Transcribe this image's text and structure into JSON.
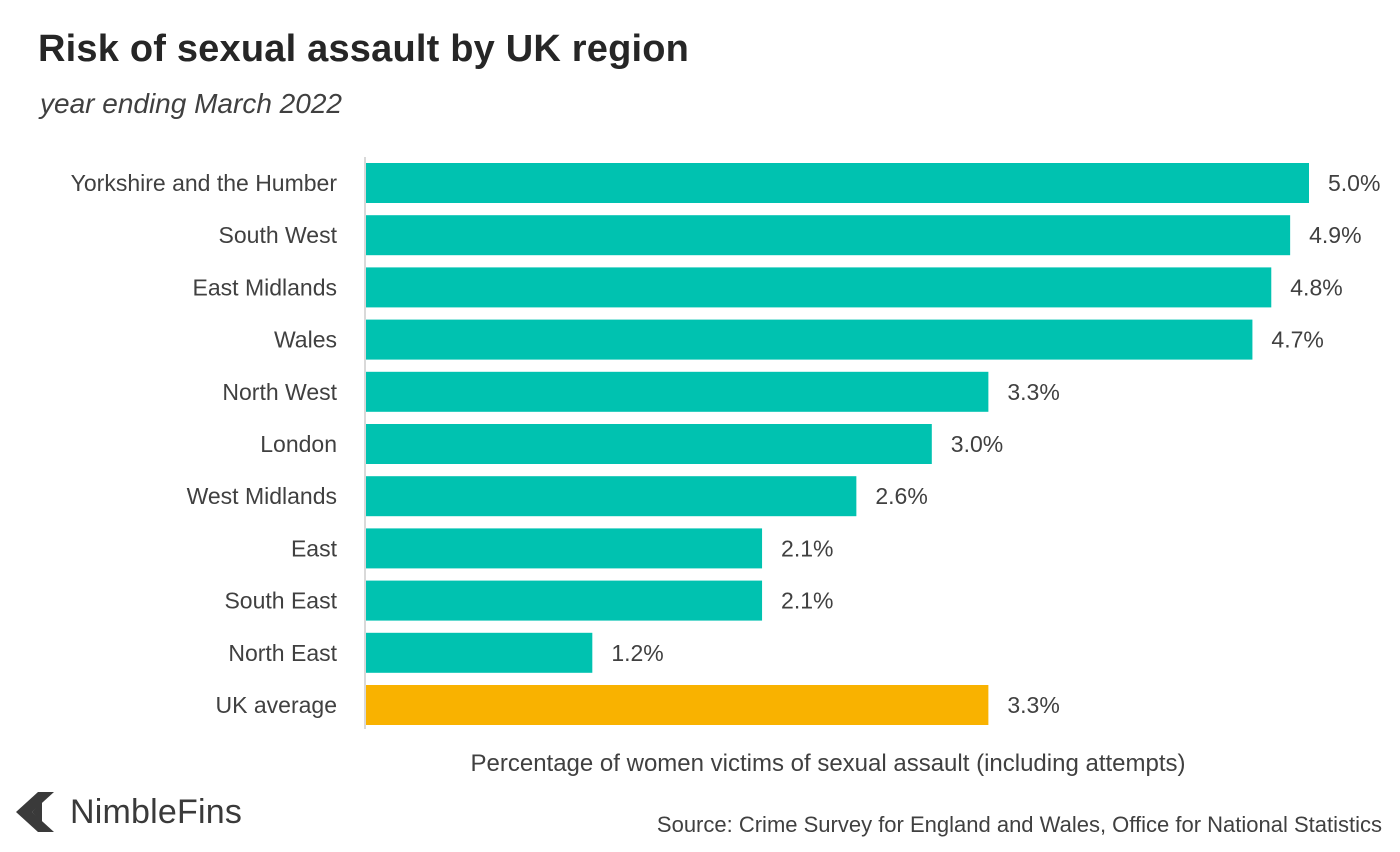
{
  "chart_data": {
    "type": "bar",
    "orientation": "horizontal",
    "title": "Risk of sexual assault by UK region",
    "subtitle": "year ending March 2022",
    "xlabel": "Percentage of women victims of sexual assault (including attempts)",
    "categories": [
      "Yorkshire and the Humber",
      "South West",
      "East Midlands",
      "Wales",
      "North West",
      "London",
      "West Midlands",
      "East",
      "South East",
      "North East",
      "UK average"
    ],
    "values": [
      5.0,
      4.9,
      4.8,
      4.7,
      3.3,
      3.0,
      2.6,
      2.1,
      2.1,
      1.2,
      3.3
    ],
    "value_labels": [
      "5.0%",
      "4.9%",
      "4.8%",
      "4.7%",
      "3.3%",
      "3.0%",
      "2.6%",
      "2.1%",
      "2.1%",
      "1.2%",
      "3.3%"
    ],
    "highlight_category": "UK average",
    "xlim": [
      0,
      5.0
    ],
    "grid": false,
    "colors": {
      "bar": "#00C2B0",
      "highlight": "#F9B200",
      "axis": "#D9D9D9"
    }
  },
  "branding": {
    "logo_text": "NimbleFins",
    "logo_icon": "chevron-left-icon"
  },
  "source": "Source: Crime Survey for England and Wales, Office for National Statistics"
}
